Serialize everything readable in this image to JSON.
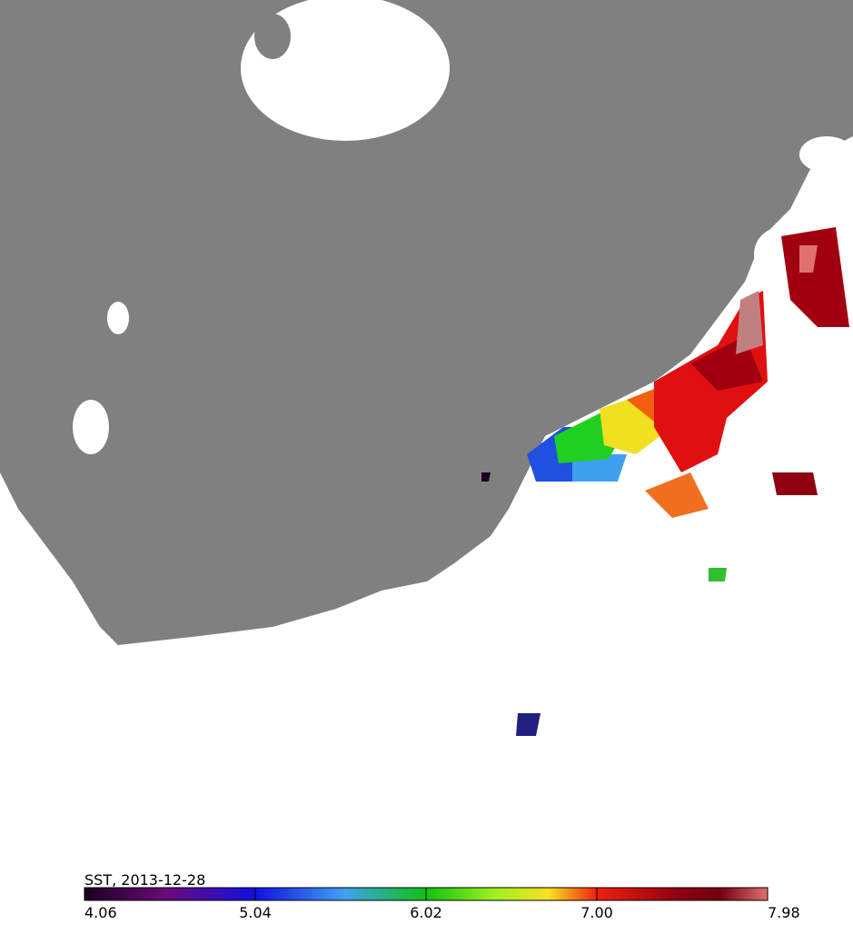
{
  "colorbar": {
    "label": "SST, 2013-12-28",
    "lim": [
      4.06,
      7.98
    ],
    "ticks": [
      4.06,
      5.04,
      6.02,
      {
        "value": 7,
        "label": "7.00"
      },
      7.98
    ]
  }
}
